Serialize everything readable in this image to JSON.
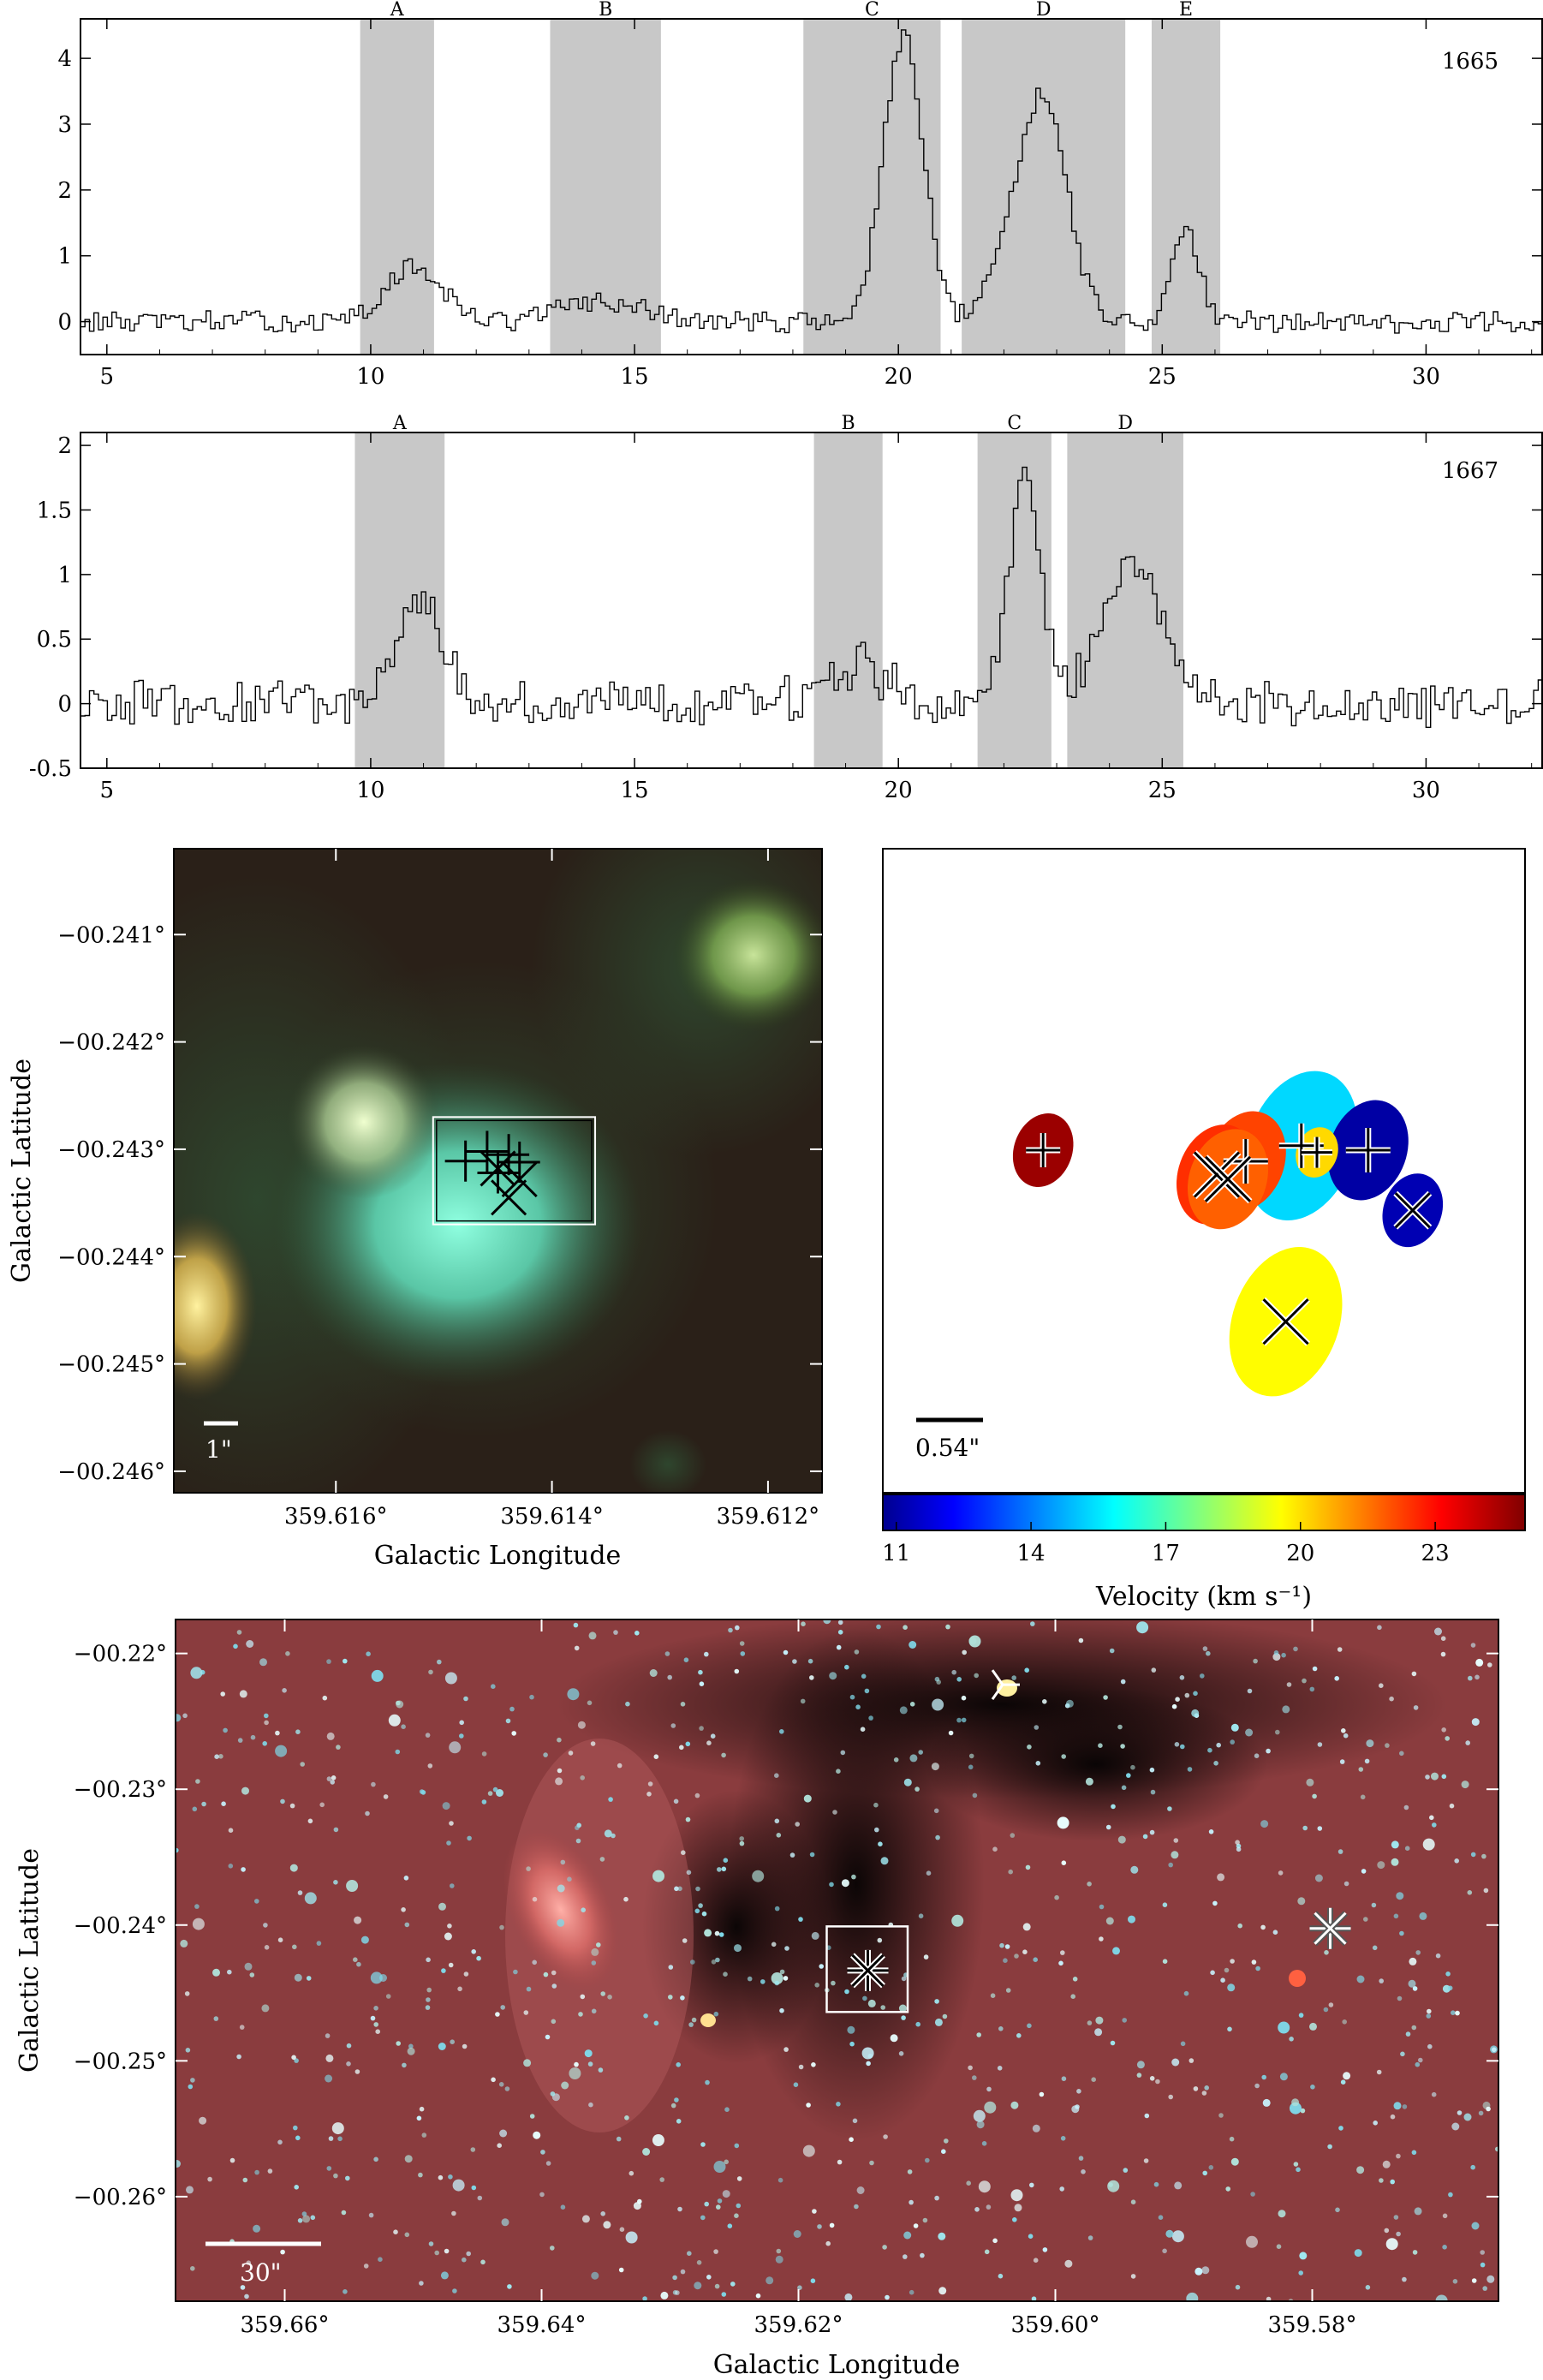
{
  "chart_data": [
    {
      "type": "line",
      "freq_label": "1665",
      "xlim": [
        4.5,
        32.2
      ],
      "ylim": [
        -0.5,
        4.6
      ],
      "x_ticks": [
        5,
        10,
        15,
        20,
        25,
        30
      ],
      "y_ticks": [
        0,
        1,
        2,
        3,
        4
      ],
      "bands": [
        {
          "label": "A",
          "range": [
            9.8,
            11.2
          ]
        },
        {
          "label": "B",
          "range": [
            13.4,
            15.5
          ]
        },
        {
          "label": "C",
          "range": [
            18.2,
            20.8
          ]
        },
        {
          "label": "D",
          "range": [
            21.2,
            24.3
          ]
        },
        {
          "label": "E",
          "range": [
            24.8,
            26.1
          ]
        }
      ],
      "series": [
        {
          "noise": 0.09,
          "peaks": [
            {
              "center": 10.8,
              "amp": 0.85,
              "width": 0.5
            },
            {
              "center": 14.3,
              "amp": 0.3,
              "width": 0.8
            },
            {
              "center": 20.05,
              "amp": 4.3,
              "width": 0.38
            },
            {
              "center": 22.7,
              "amp": 3.5,
              "width": 0.45
            },
            {
              "center": 21.9,
              "amp": 0.6,
              "width": 0.3
            },
            {
              "center": 25.4,
              "amp": 1.4,
              "width": 0.25
            }
          ]
        }
      ]
    },
    {
      "type": "line",
      "freq_label": "1667",
      "xlim": [
        4.5,
        32.2
      ],
      "ylim": [
        -0.5,
        2.1
      ],
      "x_ticks": [
        5,
        10,
        15,
        20,
        25,
        30
      ],
      "y_ticks": [
        -0.5,
        0,
        0.5,
        1,
        1.5,
        2
      ],
      "bands": [
        {
          "label": "A",
          "range": [
            9.7,
            11.4
          ]
        },
        {
          "label": "B",
          "range": [
            18.4,
            19.7
          ]
        },
        {
          "label": "C",
          "range": [
            21.5,
            22.9
          ]
        },
        {
          "label": "D",
          "range": [
            23.2,
            25.4
          ]
        }
      ],
      "series": [
        {
          "noise": 0.1,
          "peaks": [
            {
              "center": 10.9,
              "amp": 0.8,
              "width": 0.45
            },
            {
              "center": 19.2,
              "amp": 0.3,
              "width": 0.5
            },
            {
              "center": 22.35,
              "amp": 1.8,
              "width": 0.3
            },
            {
              "center": 24.4,
              "amp": 1.0,
              "width": 0.6
            }
          ]
        }
      ]
    },
    {
      "type": "scatter",
      "xlabel": "Galactic Longitude",
      "ylabel": "Galactic Latitude",
      "x_ticks": [
        "359.616°",
        "359.614°",
        "359.612°"
      ],
      "x_tick_values": [
        359.616,
        359.614,
        359.612
      ],
      "y_ticks": [
        "−00.241°",
        "−00.242°",
        "−00.243°",
        "−00.244°",
        "−00.245°",
        "−00.246°"
      ],
      "y_tick_values": [
        -0.241,
        -0.242,
        -0.243,
        -0.244,
        -0.245,
        -0.246
      ],
      "xlim": [
        359.6175,
        359.6115
      ],
      "ylim": [
        -0.2462,
        -0.2402
      ],
      "scale_bar": "1\"",
      "box": {
        "l_range": [
          359.6151,
          359.6136
        ],
        "b_range": [
          -0.2427,
          -0.2437
        ]
      },
      "markers": [
        {
          "shape": "plus",
          "l": 359.6148,
          "b": -0.24311
        },
        {
          "shape": "plus",
          "l": 359.6146,
          "b": -0.24302
        },
        {
          "shape": "plus",
          "l": 359.6144,
          "b": -0.24305
        },
        {
          "shape": "plus",
          "l": 359.6145,
          "b": -0.24322
        },
        {
          "shape": "plus",
          "l": 359.6143,
          "b": -0.24312
        },
        {
          "shape": "cross",
          "l": 359.6145,
          "b": -0.24318
        },
        {
          "shape": "cross",
          "l": 359.6143,
          "b": -0.24328
        },
        {
          "shape": "cross",
          "l": 359.6144,
          "b": -0.24345
        }
      ]
    },
    {
      "type": "scatter",
      "colorbar": {
        "label": "Velocity (km s⁻¹)",
        "ticks": [
          "11",
          "14",
          "17",
          "20",
          "23"
        ],
        "tick_values": [
          11,
          14,
          17,
          20,
          23
        ],
        "range": [
          10.7,
          25.0
        ]
      },
      "scale_bar": "0.54\"",
      "ellipses": [
        {
          "shape": "plus",
          "velocity": 15.3,
          "dx": 0.38,
          "dy": 0.18,
          "size": "large"
        },
        {
          "shape": "plus",
          "velocity": 24.6,
          "dx": -0.78,
          "dy": 0.2,
          "size": "small"
        },
        {
          "shape": "plus",
          "velocity": 11.0,
          "dx": 0.68,
          "dy": 0.2,
          "size": "medium"
        },
        {
          "shape": "plus",
          "velocity": 20.1,
          "dx": 0.45,
          "dy": 0.21,
          "size": "tiny"
        },
        {
          "shape": "plus",
          "velocity": 22.2,
          "dx": 0.13,
          "dy": 0.25,
          "size": "medium"
        },
        {
          "shape": "cross",
          "velocity": 22.5,
          "dx": 0.0,
          "dy": 0.31,
          "size": "medium"
        },
        {
          "shape": "cross",
          "velocity": 21.8,
          "dx": 0.05,
          "dy": 0.33,
          "size": "medium"
        },
        {
          "shape": "cross",
          "velocity": 11.2,
          "dx": 0.88,
          "dy": 0.47,
          "size": "small"
        },
        {
          "shape": "cross",
          "velocity": 19.6,
          "dx": 0.31,
          "dy": 0.97,
          "size": "large"
        }
      ]
    },
    {
      "type": "scatter",
      "xlabel": "Galactic Longitude",
      "ylabel": "Galactic Latitude",
      "x_ticks": [
        "359.66°",
        "359.64°",
        "359.62°",
        "359.60°",
        "359.58°"
      ],
      "x_tick_values": [
        359.66,
        359.64,
        359.62,
        359.6,
        359.58
      ],
      "y_ticks": [
        "−00.22°",
        "−00.23°",
        "−00.24°",
        "−00.25°",
        "−00.26°"
      ],
      "y_tick_values": [
        -0.22,
        -0.23,
        -0.24,
        -0.25,
        -0.26
      ],
      "xlim": [
        359.6685,
        359.5655
      ],
      "ylim": [
        -0.2677,
        -0.2175
      ],
      "scale_bar": "30\"",
      "box": {
        "l_range": [
          359.6178,
          359.6115
        ],
        "b_range": [
          -0.2401,
          -0.2464
        ]
      },
      "markers": [
        {
          "shape": "asterisk",
          "l": 359.6146,
          "b": -0.24335,
          "color": "#000000"
        },
        {
          "shape": "asterisk",
          "l": 359.5786,
          "b": -0.24025,
          "color": "#ffffff"
        },
        {
          "shape": "tri",
          "l": 359.6041,
          "b": -0.2223,
          "color": "#ffffff"
        }
      ]
    }
  ]
}
